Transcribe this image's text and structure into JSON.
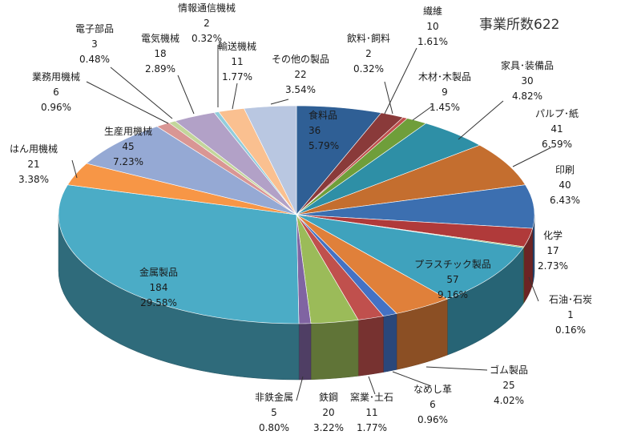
{
  "chart_data": {
    "type": "pie",
    "title": "事業所数622",
    "total": 622,
    "style": "3d-exploded-pie",
    "slices": [
      {
        "name": "食料品",
        "value": 36,
        "percent": "5.79%",
        "color": "#2f5f95"
      },
      {
        "name": "繊維",
        "value": 10,
        "percent": "1.61%",
        "color": "#8a3a3a"
      },
      {
        "name": "飲料･飼料",
        "value": 2,
        "percent": "0.32%",
        "color": "#c0504d"
      },
      {
        "name": "木材･木製品",
        "value": 9,
        "percent": "1.45%",
        "color": "#6f9e3a"
      },
      {
        "name": "家具･装備品",
        "value": 30,
        "percent": "4.82%",
        "color": "#2e8fa6"
      },
      {
        "name": "パルプ･紙",
        "value": 41,
        "percent": "6.59%",
        "color": "#c46e2f"
      },
      {
        "name": "印刷",
        "value": 40,
        "percent": "6.43%",
        "color": "#3c6fb0"
      },
      {
        "name": "化学",
        "value": 17,
        "percent": "2.73%",
        "color": "#b03a3a"
      },
      {
        "name": "石油･石炭",
        "value": 1,
        "percent": "0.16%",
        "color": "#8db04a"
      },
      {
        "name": "プラスチック製品",
        "value": 57,
        "percent": "9.16%",
        "color": "#3fa2bd"
      },
      {
        "name": "ゴム製品",
        "value": 25,
        "percent": "4.02%",
        "color": "#e0803a"
      },
      {
        "name": "なめし革",
        "value": 6,
        "percent": "0.96%",
        "color": "#4472c4"
      },
      {
        "name": "窯業･土石",
        "value": 11,
        "percent": "1.77%",
        "color": "#c0504d"
      },
      {
        "name": "鉄鋼",
        "value": 20,
        "percent": "3.22%",
        "color": "#9bbb59"
      },
      {
        "name": "非鉄金属",
        "value": 5,
        "percent": "0.80%",
        "color": "#8064a2"
      },
      {
        "name": "金属製品",
        "value": 184,
        "percent": "29.58%",
        "color": "#4bacc6"
      },
      {
        "name": "はん用機械",
        "value": 21,
        "percent": "3.38%",
        "color": "#f79646"
      },
      {
        "name": "生産用機械",
        "value": 45,
        "percent": "7.23%",
        "color": "#95a9d4"
      },
      {
        "name": "業務用機械",
        "value": 6,
        "percent": "0.96%",
        "color": "#d99694"
      },
      {
        "name": "電子部品",
        "value": 3,
        "percent": "0.48%",
        "color": "#c3d69b"
      },
      {
        "name": "電気機械",
        "value": 18,
        "percent": "2.89%",
        "color": "#b2a1c7"
      },
      {
        "name": "情報通信機械",
        "value": 2,
        "percent": "0.32%",
        "color": "#92cddc"
      },
      {
        "name": "輸送機械",
        "value": 11,
        "percent": "1.77%",
        "color": "#fac090"
      },
      {
        "name": "その他の製品",
        "value": 22,
        "percent": "3.54%",
        "color": "#b9c7e1"
      }
    ]
  }
}
